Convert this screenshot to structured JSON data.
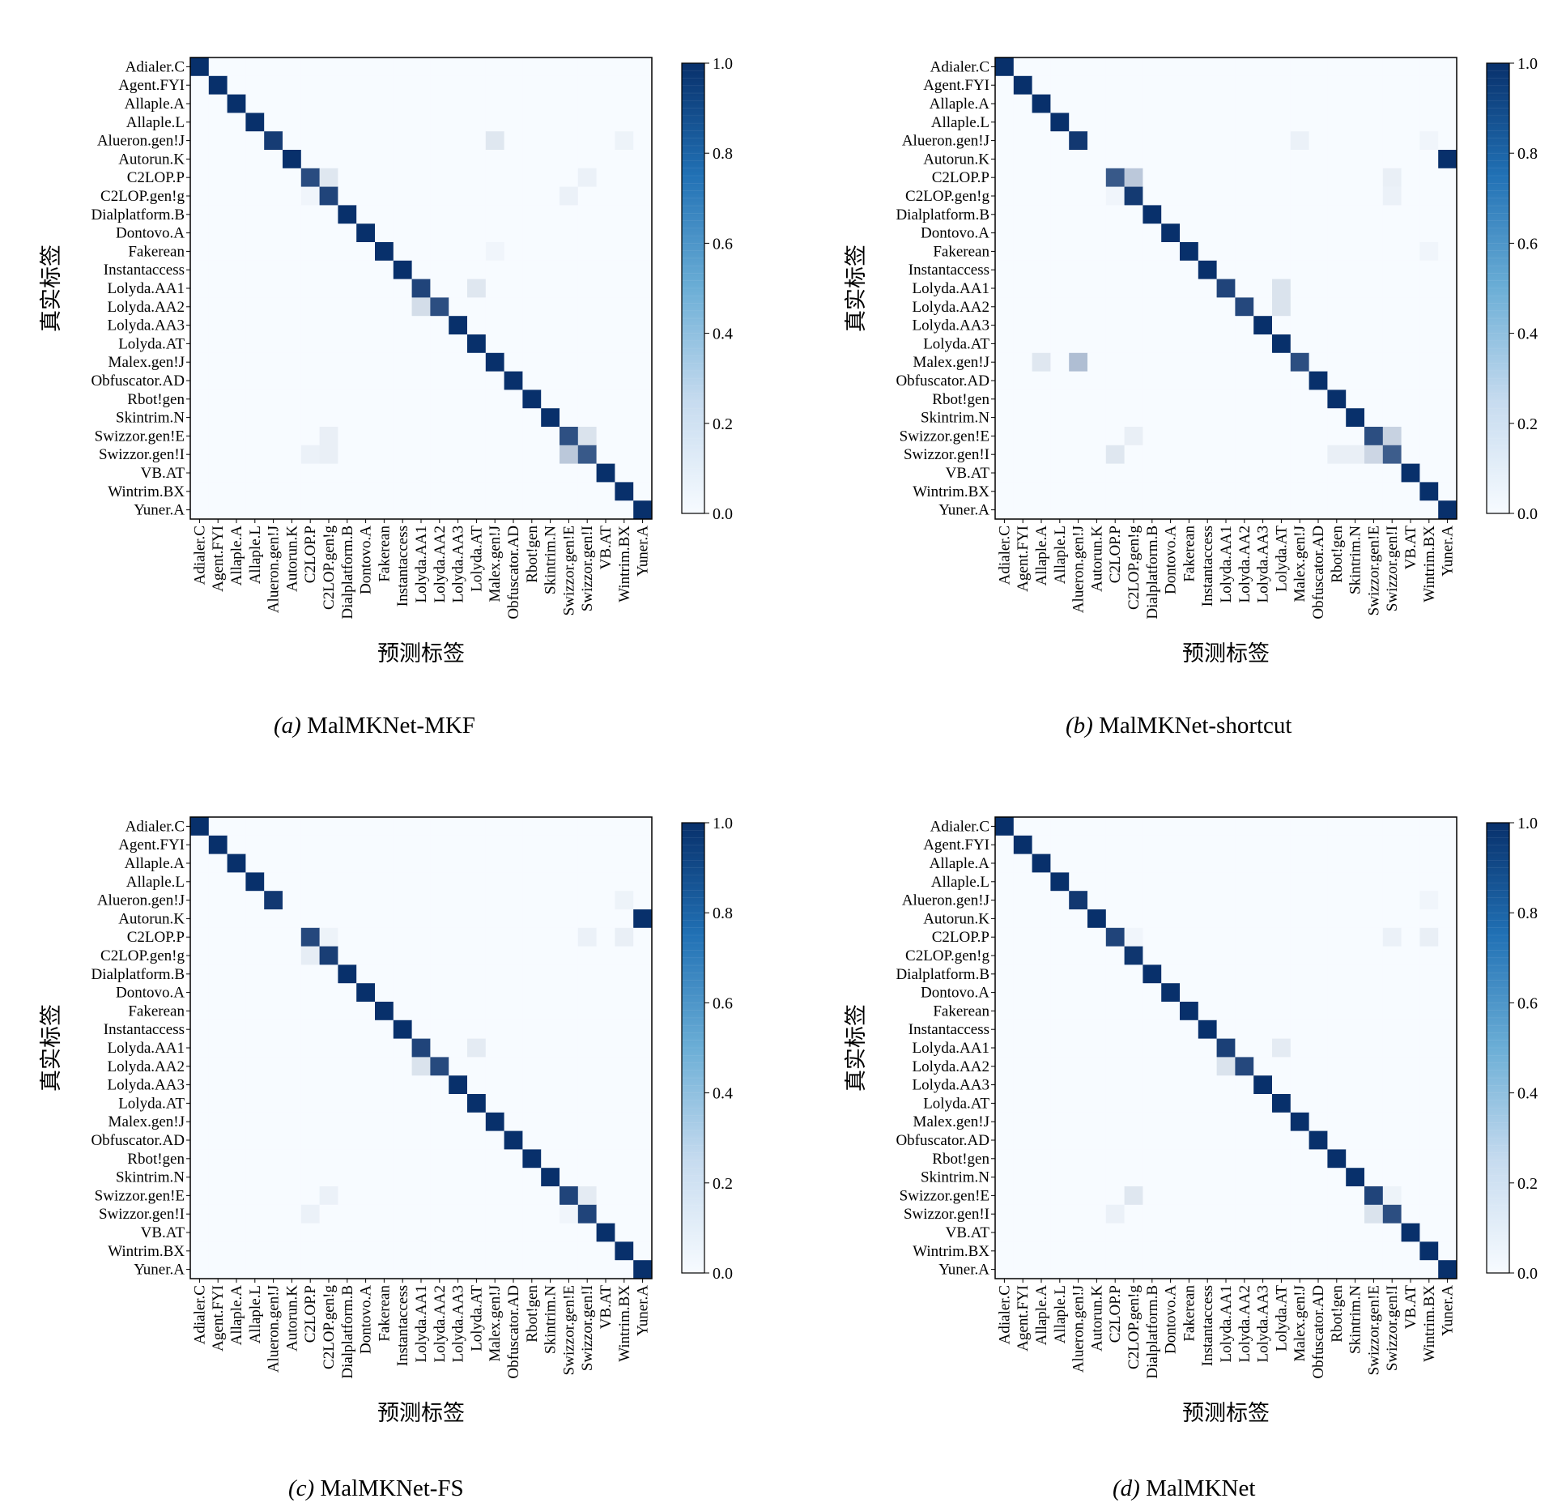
{
  "labels": [
    "Adialer.C",
    "Agent.FYI",
    "Allaple.A",
    "Allaple.L",
    "Alueron.gen!J",
    "Autorun.K",
    "C2LOP.P",
    "C2LOP.gen!g",
    "Dialplatform.B",
    "Dontovo.A",
    "Fakerean",
    "Instantaccess",
    "Lolyda.AA1",
    "Lolyda.AA2",
    "Lolyda.AA3",
    "Lolyda.AT",
    "Malex.gen!J",
    "Obfuscator.AD",
    "Rbot!gen",
    "Skintrim.N",
    "Swizzor.gen!E",
    "Swizzor.gen!I",
    "VB.AT",
    "Wintrim.BX",
    "Yuner.A"
  ],
  "colormap": {
    "low": "#f7fbff",
    "high": "#08306b"
  },
  "chart_data": [
    {
      "type": "heatmap",
      "panel": "a",
      "caption": "MalMKNet-MKF",
      "caption_letter": "(a)",
      "xlabel": "预测标签",
      "ylabel": "真实标签",
      "colorbar_range": [
        0,
        1
      ],
      "colorbar_ticks": [
        "0.0",
        "0.2",
        "0.4",
        "0.6",
        "0.8",
        "1.0"
      ],
      "diagonal": [
        1,
        1,
        1,
        1,
        0.94,
        1,
        0.86,
        0.9,
        1,
        1,
        1,
        1,
        0.9,
        0.85,
        1,
        1,
        1,
        1,
        1,
        1,
        0.84,
        0.8,
        1,
        1,
        1
      ],
      "off_diagonal": [
        {
          "row": 4,
          "col": 16,
          "value": 0.1
        },
        {
          "row": 4,
          "col": 23,
          "value": 0.04
        },
        {
          "row": 6,
          "col": 7,
          "value": 0.1
        },
        {
          "row": 6,
          "col": 21,
          "value": 0.05
        },
        {
          "row": 7,
          "col": 6,
          "value": 0.03
        },
        {
          "row": 7,
          "col": 20,
          "value": 0.05
        },
        {
          "row": 10,
          "col": 16,
          "value": 0.03
        },
        {
          "row": 12,
          "col": 15,
          "value": 0.1
        },
        {
          "row": 13,
          "col": 12,
          "value": 0.15
        },
        {
          "row": 20,
          "col": 7,
          "value": 0.06
        },
        {
          "row": 20,
          "col": 21,
          "value": 0.12
        },
        {
          "row": 21,
          "col": 6,
          "value": 0.05
        },
        {
          "row": 21,
          "col": 7,
          "value": 0.06
        },
        {
          "row": 21,
          "col": 20,
          "value": 0.25
        }
      ]
    },
    {
      "type": "heatmap",
      "panel": "b",
      "caption": "MalMKNet-shortcut",
      "caption_letter": "(b)",
      "xlabel": "预测标签",
      "ylabel": "真实标签",
      "colorbar_range": [
        0,
        1
      ],
      "colorbar_ticks": [
        "0.0",
        "0.2",
        "0.4",
        "0.6",
        "0.8",
        "1.0"
      ],
      "diagonal": [
        1,
        1,
        1,
        1,
        0.96,
        0,
        0.8,
        0.95,
        1,
        1,
        1,
        1,
        0.9,
        0.88,
        1,
        1,
        0.85,
        1,
        1,
        1,
        0.85,
        0.78,
        1,
        1,
        1
      ],
      "off_diagonal": [
        {
          "row": 4,
          "col": 16,
          "value": 0.05
        },
        {
          "row": 4,
          "col": 23,
          "value": 0.03
        },
        {
          "row": 5,
          "col": 24,
          "value": 1
        },
        {
          "row": 6,
          "col": 7,
          "value": 0.25
        },
        {
          "row": 6,
          "col": 21,
          "value": 0.06
        },
        {
          "row": 7,
          "col": 6,
          "value": 0.03
        },
        {
          "row": 7,
          "col": 21,
          "value": 0.05
        },
        {
          "row": 10,
          "col": 23,
          "value": 0.03
        },
        {
          "row": 12,
          "col": 15,
          "value": 0.12
        },
        {
          "row": 13,
          "col": 15,
          "value": 0.12
        },
        {
          "row": 16,
          "col": 2,
          "value": 0.1
        },
        {
          "row": 16,
          "col": 4,
          "value": 0.3
        },
        {
          "row": 20,
          "col": 7,
          "value": 0.06
        },
        {
          "row": 20,
          "col": 21,
          "value": 0.2
        },
        {
          "row": 21,
          "col": 6,
          "value": 0.1
        },
        {
          "row": 21,
          "col": 18,
          "value": 0.06
        },
        {
          "row": 21,
          "col": 19,
          "value": 0.06
        },
        {
          "row": 21,
          "col": 20,
          "value": 0.18
        }
      ]
    },
    {
      "type": "heatmap",
      "panel": "c",
      "caption": "MalMKNet-FS",
      "caption_letter": "(c)",
      "xlabel": "预测标签",
      "ylabel": "真实标签",
      "colorbar_range": [
        0,
        1
      ],
      "colorbar_ticks": [
        "0.0",
        "0.2",
        "0.4",
        "0.6",
        "0.8",
        "1.0"
      ],
      "diagonal": [
        1,
        1,
        1,
        1,
        0.96,
        0,
        0.88,
        0.93,
        1,
        1,
        1,
        1,
        0.9,
        0.87,
        1,
        1,
        1,
        1,
        1,
        1,
        0.9,
        0.9,
        1,
        1,
        1
      ],
      "off_diagonal": [
        {
          "row": 4,
          "col": 23,
          "value": 0.04
        },
        {
          "row": 5,
          "col": 24,
          "value": 1
        },
        {
          "row": 6,
          "col": 7,
          "value": 0.04
        },
        {
          "row": 6,
          "col": 21,
          "value": 0.05
        },
        {
          "row": 6,
          "col": 23,
          "value": 0.06
        },
        {
          "row": 7,
          "col": 6,
          "value": 0.07
        },
        {
          "row": 12,
          "col": 15,
          "value": 0.08
        },
        {
          "row": 13,
          "col": 12,
          "value": 0.12
        },
        {
          "row": 20,
          "col": 7,
          "value": 0.05
        },
        {
          "row": 20,
          "col": 21,
          "value": 0.08
        },
        {
          "row": 21,
          "col": 6,
          "value": 0.05
        },
        {
          "row": 21,
          "col": 20,
          "value": 0.03
        }
      ]
    },
    {
      "type": "heatmap",
      "panel": "d",
      "caption": "MalMKNet",
      "caption_letter": "(d)",
      "xlabel": "预测标签",
      "ylabel": "真实标签",
      "colorbar_range": [
        0,
        1
      ],
      "colorbar_ticks": [
        "0.0",
        "0.2",
        "0.4",
        "0.6",
        "0.8",
        "1.0"
      ],
      "diagonal": [
        1,
        1,
        1,
        1,
        0.96,
        1,
        0.9,
        0.97,
        1,
        1,
        1,
        1,
        0.92,
        0.88,
        1,
        1,
        1,
        1,
        1,
        1,
        0.9,
        0.85,
        1,
        1,
        1
      ],
      "off_diagonal": [
        {
          "row": 4,
          "col": 23,
          "value": 0.03
        },
        {
          "row": 6,
          "col": 7,
          "value": 0.03
        },
        {
          "row": 6,
          "col": 21,
          "value": 0.05
        },
        {
          "row": 6,
          "col": 23,
          "value": 0.06
        },
        {
          "row": 12,
          "col": 15,
          "value": 0.08
        },
        {
          "row": 13,
          "col": 12,
          "value": 0.12
        },
        {
          "row": 20,
          "col": 7,
          "value": 0.1
        },
        {
          "row": 20,
          "col": 21,
          "value": 0.04
        },
        {
          "row": 21,
          "col": 6,
          "value": 0.05
        },
        {
          "row": 21,
          "col": 20,
          "value": 0.12
        }
      ]
    }
  ]
}
